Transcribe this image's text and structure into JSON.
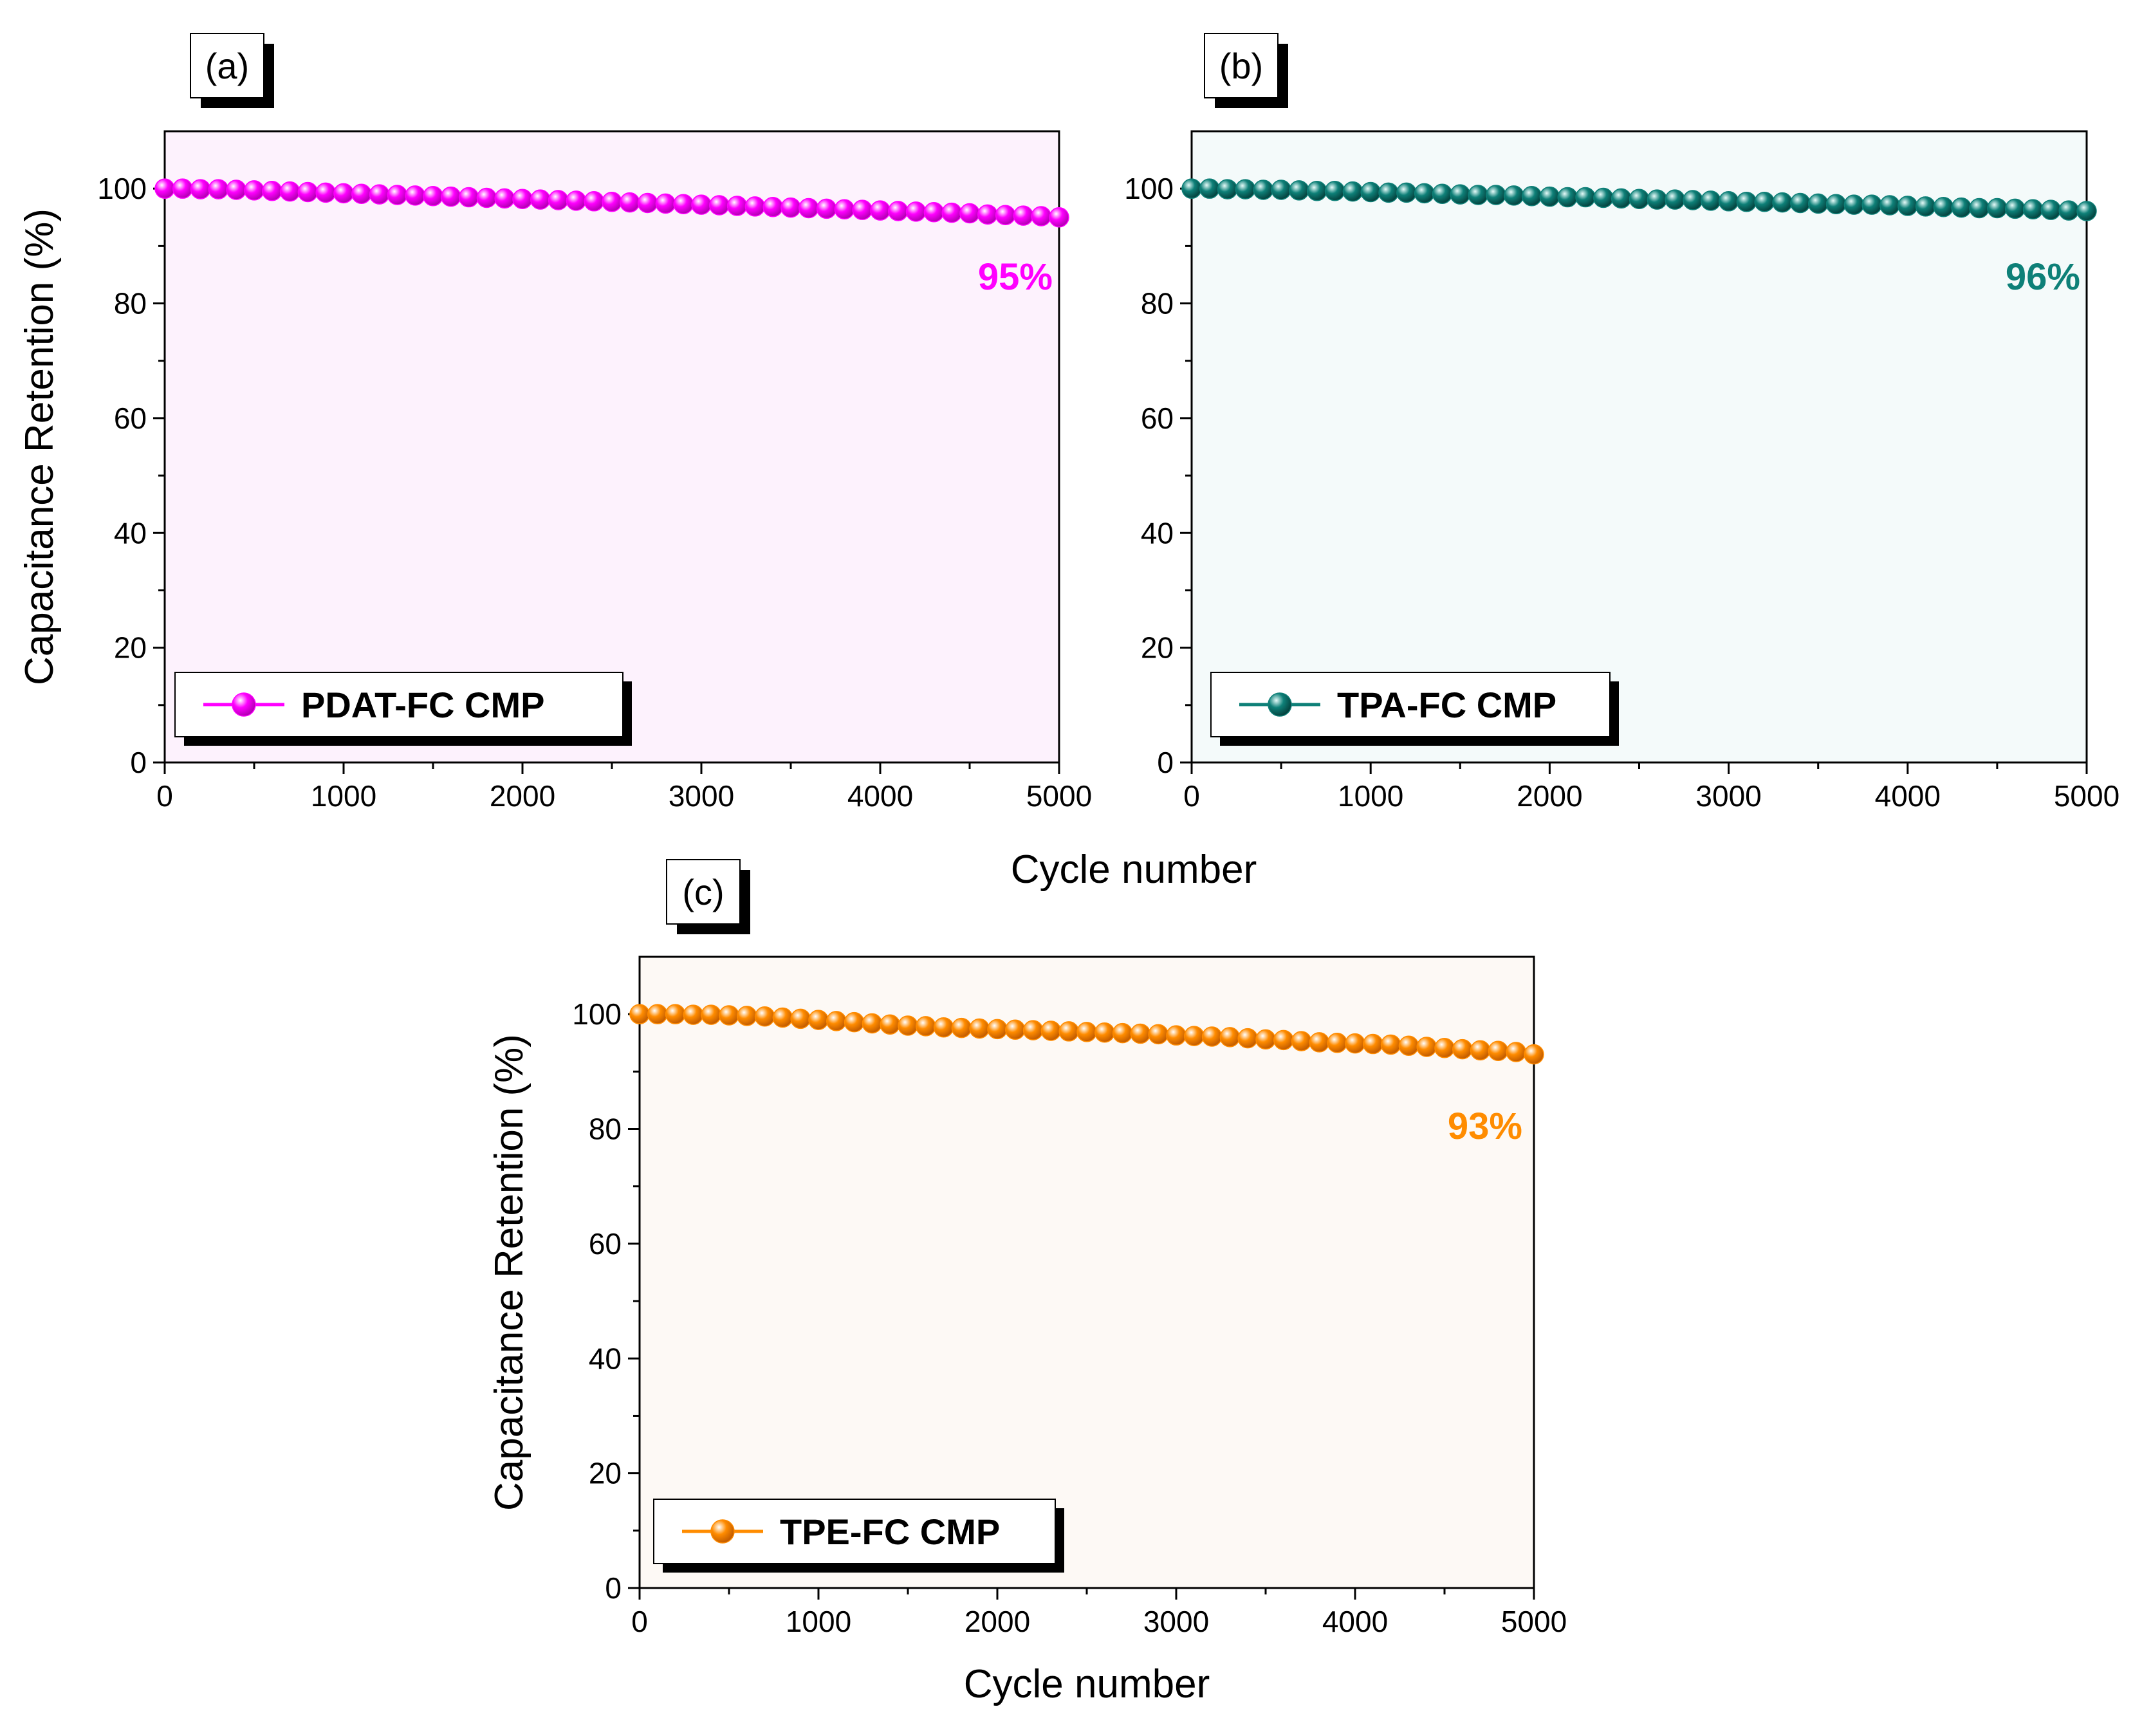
{
  "figure": {
    "shared_xlabel": "Cycle number"
  },
  "chart_data": [
    {
      "type": "line",
      "panel_label": "(a)",
      "title": "",
      "xlabel": "",
      "ylabel": "Capacitance Retention (%)",
      "xlim": [
        0,
        5000
      ],
      "ylim": [
        0,
        110
      ],
      "xticks": [
        0,
        1000,
        2000,
        3000,
        4000,
        5000
      ],
      "yticks": [
        0,
        20,
        40,
        60,
        80,
        100
      ],
      "legend": "bottom-left",
      "annotation": "95%",
      "series": [
        {
          "name": "PDAT-FC CMP",
          "color": "#ff00ff",
          "background": "#fdf2fd",
          "x": [
            0,
            100,
            200,
            300,
            400,
            500,
            600,
            700,
            800,
            900,
            1000,
            1100,
            1200,
            1300,
            1400,
            1500,
            1600,
            1700,
            1800,
            1900,
            2000,
            2100,
            2200,
            2300,
            2400,
            2500,
            2600,
            2700,
            2800,
            2900,
            3000,
            3100,
            3200,
            3300,
            3400,
            3500,
            3600,
            3700,
            3800,
            3900,
            4000,
            4100,
            4200,
            4300,
            4400,
            4500,
            4600,
            4700,
            4800,
            4900,
            5000
          ],
          "y": [
            100.0,
            100.0,
            99.9,
            99.9,
            99.8,
            99.7,
            99.6,
            99.5,
            99.4,
            99.3,
            99.2,
            99.1,
            99.0,
            98.9,
            98.8,
            98.7,
            98.6,
            98.5,
            98.4,
            98.3,
            98.2,
            98.1,
            98.0,
            97.9,
            97.8,
            97.7,
            97.6,
            97.5,
            97.4,
            97.3,
            97.2,
            97.1,
            97.0,
            96.9,
            96.8,
            96.7,
            96.6,
            96.5,
            96.4,
            96.3,
            96.2,
            96.1,
            96.0,
            95.9,
            95.8,
            95.7,
            95.5,
            95.4,
            95.3,
            95.2,
            95.0
          ]
        }
      ]
    },
    {
      "type": "line",
      "panel_label": "(b)",
      "title": "",
      "xlabel": "",
      "ylabel": "",
      "xlim": [
        0,
        5000
      ],
      "ylim": [
        0,
        110
      ],
      "xticks": [
        0,
        1000,
        2000,
        3000,
        4000,
        5000
      ],
      "yticks": [
        0,
        20,
        40,
        60,
        80,
        100
      ],
      "legend": "bottom-left",
      "annotation": "96%",
      "series": [
        {
          "name": "TPA-FC CMP",
          "color": "#0e8078",
          "background": "#f4fafa",
          "x": [
            0,
            100,
            200,
            300,
            400,
            500,
            600,
            700,
            800,
            900,
            1000,
            1100,
            1200,
            1300,
            1400,
            1500,
            1600,
            1700,
            1800,
            1900,
            2000,
            2100,
            2200,
            2300,
            2400,
            2500,
            2600,
            2700,
            2800,
            2900,
            3000,
            3100,
            3200,
            3300,
            3400,
            3500,
            3600,
            3700,
            3800,
            3900,
            4000,
            4100,
            4200,
            4300,
            4400,
            4500,
            4600,
            4700,
            4800,
            4900,
            5000
          ],
          "y": [
            100.0,
            100.0,
            99.9,
            99.9,
            99.8,
            99.8,
            99.7,
            99.6,
            99.6,
            99.5,
            99.4,
            99.3,
            99.3,
            99.2,
            99.1,
            99.0,
            98.9,
            98.9,
            98.8,
            98.7,
            98.6,
            98.5,
            98.5,
            98.4,
            98.3,
            98.2,
            98.1,
            98.1,
            98.0,
            97.9,
            97.8,
            97.7,
            97.7,
            97.6,
            97.5,
            97.4,
            97.3,
            97.2,
            97.2,
            97.1,
            97.0,
            96.9,
            96.8,
            96.7,
            96.6,
            96.6,
            96.5,
            96.4,
            96.3,
            96.2,
            96.1
          ]
        }
      ]
    },
    {
      "type": "line",
      "panel_label": "(c)",
      "title": "",
      "xlabel": "Cycle number",
      "ylabel": "Capacitance Retention (%)",
      "xlim": [
        0,
        5000
      ],
      "ylim": [
        0,
        110
      ],
      "xticks": [
        0,
        1000,
        2000,
        3000,
        4000,
        5000
      ],
      "yticks": [
        0,
        20,
        40,
        60,
        80,
        100
      ],
      "legend": "bottom-left",
      "annotation": "93%",
      "series": [
        {
          "name": "TPE-FC CMP",
          "color": "#ff8c00",
          "background": "#fdf9f5",
          "x": [
            0,
            100,
            200,
            300,
            400,
            500,
            600,
            700,
            800,
            900,
            1000,
            1100,
            1200,
            1300,
            1400,
            1500,
            1600,
            1700,
            1800,
            1900,
            2000,
            2100,
            2200,
            2300,
            2400,
            2500,
            2600,
            2700,
            2800,
            2900,
            3000,
            3100,
            3200,
            3300,
            3400,
            3500,
            3600,
            3700,
            3800,
            3900,
            4000,
            4100,
            4200,
            4300,
            4400,
            4500,
            4600,
            4700,
            4800,
            4900,
            5000
          ],
          "y": [
            100.0,
            100.0,
            100.0,
            99.9,
            99.9,
            99.8,
            99.7,
            99.6,
            99.4,
            99.2,
            99.0,
            98.8,
            98.6,
            98.4,
            98.2,
            98.0,
            97.9,
            97.7,
            97.6,
            97.5,
            97.4,
            97.3,
            97.2,
            97.1,
            97.0,
            96.9,
            96.8,
            96.7,
            96.6,
            96.5,
            96.3,
            96.2,
            96.1,
            96.0,
            95.8,
            95.6,
            95.5,
            95.3,
            95.1,
            95.0,
            94.9,
            94.8,
            94.7,
            94.5,
            94.3,
            94.1,
            93.9,
            93.7,
            93.6,
            93.4,
            93.0
          ]
        }
      ]
    }
  ]
}
